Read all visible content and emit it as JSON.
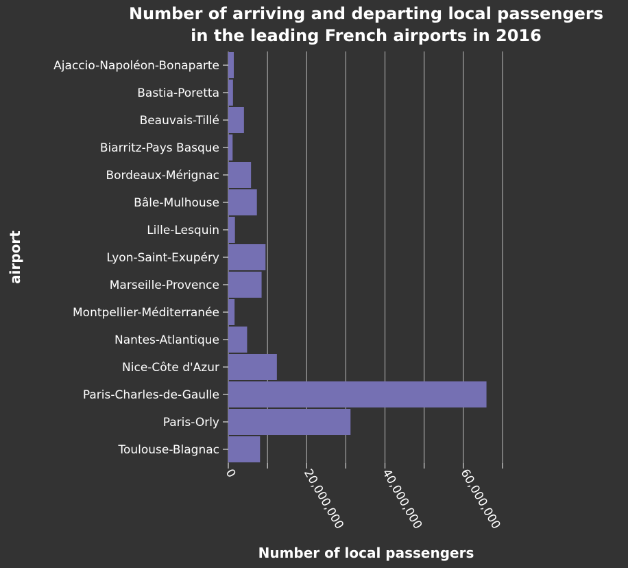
{
  "chart_data": {
    "type": "bar",
    "orientation": "horizontal",
    "title_lines": [
      "Number of arriving and departing local passengers",
      "in the leading French airports in 2016"
    ],
    "xlabel": "Number of local passengers",
    "ylabel": "airport",
    "categories": [
      "Ajaccio-Napoléon-Bonaparte",
      "Bastia-Poretta",
      "Beauvais-Tillé",
      "Biarritz-Pays Basque",
      "Bordeaux-Mérignac",
      "Bâle-Mulhouse",
      "Lille-Lesquin",
      "Lyon-Saint-Exupéry",
      "Marseille-Provence",
      "Montpellier-Méditerranée",
      "Nantes-Atlantique",
      "Nice-Côte d'Azur",
      "Paris-Charles-de-Gaulle",
      "Paris-Orly",
      "Toulouse-Blagnac"
    ],
    "values": [
      1400000,
      1200000,
      4000000,
      1100000,
      5800000,
      7300000,
      1700000,
      9500000,
      8500000,
      1600000,
      4800000,
      12400000,
      65900000,
      31200000,
      8100000
    ],
    "xlim": [
      0,
      70000000
    ],
    "xticks": [
      0,
      20000000,
      40000000,
      60000000
    ],
    "xtick_labels": [
      "0",
      "20,000,000",
      "40,000,000",
      "60,000,000"
    ],
    "grid": "vertical",
    "colors": {
      "background": "#333333",
      "bar": "#7570b3",
      "grid": "#bfbfbf",
      "text": "#ffffff"
    }
  }
}
